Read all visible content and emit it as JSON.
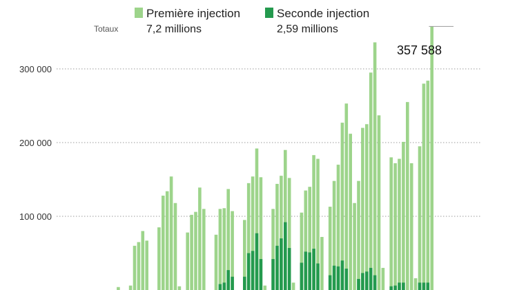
{
  "chart_data": {
    "type": "bar",
    "stacked": false,
    "title": "",
    "xlabel": "",
    "ylabel": "",
    "ylim": [
      0,
      365000
    ],
    "yticks": [
      {
        "value": 100000,
        "label": "100 000"
      },
      {
        "value": 200000,
        "label": "200 000"
      },
      {
        "value": 300000,
        "label": "300 000"
      }
    ],
    "grid": true,
    "legend": {
      "position": "top",
      "totals_label": "Totaux",
      "entries": [
        {
          "name": "Première injection",
          "total": "7,2 millions",
          "color": "#9dd48b"
        },
        {
          "name": "Seconde injection",
          "total": "2,59 millions",
          "color": "#249a4e"
        }
      ]
    },
    "series": [
      {
        "name": "Première injection",
        "color": "#9dd48b",
        "values": [
          0,
          0,
          0,
          0,
          0,
          0,
          0,
          0,
          0,
          4000,
          0,
          0,
          6000,
          60000,
          65000,
          80000,
          67000,
          0,
          0,
          85000,
          128000,
          134000,
          154000,
          118000,
          5000,
          0,
          78000,
          102000,
          106000,
          139000,
          110000,
          0,
          0,
          75000,
          110000,
          111000,
          137000,
          107000,
          0,
          0,
          95000,
          145000,
          154000,
          192000,
          153000,
          6000,
          0,
          110000,
          144000,
          155000,
          190000,
          152000,
          10000,
          0,
          105000,
          135000,
          140000,
          183000,
          178000,
          72000,
          0,
          113000,
          148000,
          170000,
          227000,
          253000,
          212000,
          118000,
          148000,
          220000,
          225000,
          295000,
          336000,
          237000,
          30000,
          0,
          180000,
          172000,
          178000,
          201000,
          255000,
          172000,
          16000,
          195000,
          280000,
          284000,
          357588
        ]
      },
      {
        "name": "Seconde injection",
        "color": "#249a4e",
        "values": [
          0,
          0,
          0,
          0,
          0,
          0,
          0,
          0,
          0,
          0,
          0,
          0,
          0,
          0,
          0,
          0,
          0,
          0,
          0,
          0,
          0,
          0,
          0,
          0,
          0,
          0,
          0,
          0,
          0,
          0,
          0,
          0,
          0,
          0,
          8000,
          10000,
          27000,
          18000,
          0,
          0,
          18000,
          50000,
          53000,
          77000,
          42000,
          0,
          0,
          42000,
          60000,
          70000,
          92000,
          57000,
          0,
          0,
          37000,
          52000,
          51000,
          56000,
          36000,
          0,
          0,
          20000,
          33000,
          32000,
          40000,
          29000,
          0,
          0,
          15000,
          23000,
          25000,
          30000,
          20000,
          0,
          0,
          0,
          5000,
          6000,
          10000,
          10000,
          0,
          0,
          0,
          10000,
          10000,
          10000
        ]
      }
    ],
    "annotations": [
      {
        "text": "357 588",
        "value": 357588
      }
    ]
  }
}
